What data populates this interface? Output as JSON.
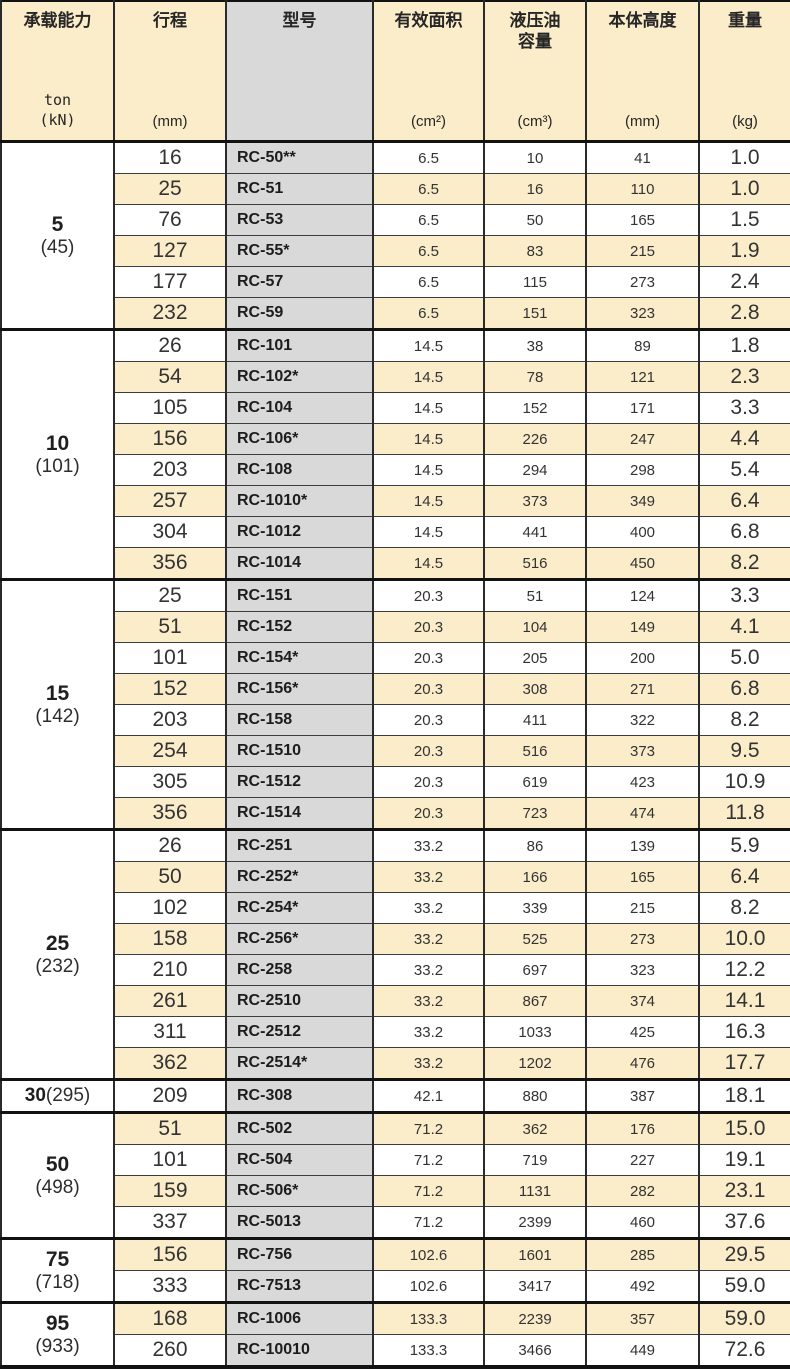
{
  "table": {
    "columns": [
      {
        "label": "承载能力",
        "sub1": "ton",
        "sub2": "(kN)"
      },
      {
        "label": "行程",
        "unit": "(mm)"
      },
      {
        "label": "型号",
        "unit": ""
      },
      {
        "label": "有效面积",
        "unit": "(cm²)"
      },
      {
        "label": "液压油容量",
        "unit": "(cm³)"
      },
      {
        "label": "本体高度",
        "unit": "(mm)"
      },
      {
        "label": "重量",
        "unit": "(kg)"
      }
    ],
    "colors": {
      "row_cream": "#fbedca",
      "model_column_gray": "#d9d9d9",
      "row_white": "#ffffff",
      "border_black": "#121212"
    },
    "sections": [
      {
        "capacity_ton": "5",
        "capacity_kn": "(45)",
        "inline_label": false,
        "rows": [
          [
            "16",
            "RC-50**",
            "6.5",
            "10",
            "41",
            "1.0"
          ],
          [
            "25",
            "RC-51",
            "6.5",
            "16",
            "110",
            "1.0"
          ],
          [
            "76",
            "RC-53",
            "6.5",
            "50",
            "165",
            "1.5"
          ],
          [
            "127",
            "RC-55*",
            "6.5",
            "83",
            "215",
            "1.9"
          ],
          [
            "177",
            "RC-57",
            "6.5",
            "115",
            "273",
            "2.4"
          ],
          [
            "232",
            "RC-59",
            "6.5",
            "151",
            "323",
            "2.8"
          ]
        ]
      },
      {
        "capacity_ton": "10",
        "capacity_kn": "(101)",
        "inline_label": false,
        "rows": [
          [
            "26",
            "RC-101",
            "14.5",
            "38",
            "89",
            "1.8"
          ],
          [
            "54",
            "RC-102*",
            "14.5",
            "78",
            "121",
            "2.3"
          ],
          [
            "105",
            "RC-104",
            "14.5",
            "152",
            "171",
            "3.3"
          ],
          [
            "156",
            "RC-106*",
            "14.5",
            "226",
            "247",
            "4.4"
          ],
          [
            "203",
            "RC-108",
            "14.5",
            "294",
            "298",
            "5.4"
          ],
          [
            "257",
            "RC-1010*",
            "14.5",
            "373",
            "349",
            "6.4"
          ],
          [
            "304",
            "RC-1012",
            "14.5",
            "441",
            "400",
            "6.8"
          ],
          [
            "356",
            "RC-1014",
            "14.5",
            "516",
            "450",
            "8.2"
          ]
        ]
      },
      {
        "capacity_ton": "15",
        "capacity_kn": "(142)",
        "inline_label": false,
        "rows": [
          [
            "25",
            "RC-151",
            "20.3",
            "51",
            "124",
            "3.3"
          ],
          [
            "51",
            "RC-152",
            "20.3",
            "104",
            "149",
            "4.1"
          ],
          [
            "101",
            "RC-154*",
            "20.3",
            "205",
            "200",
            "5.0"
          ],
          [
            "152",
            "RC-156*",
            "20.3",
            "308",
            "271",
            "6.8"
          ],
          [
            "203",
            "RC-158",
            "20.3",
            "411",
            "322",
            "8.2"
          ],
          [
            "254",
            "RC-1510",
            "20.3",
            "516",
            "373",
            "9.5"
          ],
          [
            "305",
            "RC-1512",
            "20.3",
            "619",
            "423",
            "10.9"
          ],
          [
            "356",
            "RC-1514",
            "20.3",
            "723",
            "474",
            "11.8"
          ]
        ]
      },
      {
        "capacity_ton": "25",
        "capacity_kn": "(232)",
        "inline_label": false,
        "rows": [
          [
            "26",
            "RC-251",
            "33.2",
            "86",
            "139",
            "5.9"
          ],
          [
            "50",
            "RC-252*",
            "33.2",
            "166",
            "165",
            "6.4"
          ],
          [
            "102",
            "RC-254*",
            "33.2",
            "339",
            "215",
            "8.2"
          ],
          [
            "158",
            "RC-256*",
            "33.2",
            "525",
            "273",
            "10.0"
          ],
          [
            "210",
            "RC-258",
            "33.2",
            "697",
            "323",
            "12.2"
          ],
          [
            "261",
            "RC-2510",
            "33.2",
            "867",
            "374",
            "14.1"
          ],
          [
            "311",
            "RC-2512",
            "33.2",
            "1033",
            "425",
            "16.3"
          ],
          [
            "362",
            "RC-2514*",
            "33.2",
            "1202",
            "476",
            "17.7"
          ]
        ]
      },
      {
        "capacity_ton": "30",
        "capacity_kn": "(295)",
        "inline_label": true,
        "rows": [
          [
            "209",
            "RC-308",
            "42.1",
            "880",
            "387",
            "18.1"
          ]
        ]
      },
      {
        "capacity_ton": "50",
        "capacity_kn": "(498)",
        "inline_label": false,
        "rows": [
          [
            "51",
            "RC-502",
            "71.2",
            "362",
            "176",
            "15.0"
          ],
          [
            "101",
            "RC-504",
            "71.2",
            "719",
            "227",
            "19.1"
          ],
          [
            "159",
            "RC-506*",
            "71.2",
            "1131",
            "282",
            "23.1"
          ],
          [
            "337",
            "RC-5013",
            "71.2",
            "2399",
            "460",
            "37.6"
          ]
        ]
      },
      {
        "capacity_ton": "75",
        "capacity_kn": "(718)",
        "inline_label": false,
        "rows": [
          [
            "156",
            "RC-756",
            "102.6",
            "1601",
            "285",
            "29.5"
          ],
          [
            "333",
            "RC-7513",
            "102.6",
            "3417",
            "492",
            "59.0"
          ]
        ]
      },
      {
        "capacity_ton": "95",
        "capacity_kn": "(933)",
        "inline_label": false,
        "rows": [
          [
            "168",
            "RC-1006",
            "133.3",
            "2239",
            "357",
            "59.0"
          ],
          [
            "260",
            "RC-10010",
            "133.3",
            "3466",
            "449",
            "72.6"
          ]
        ]
      }
    ]
  }
}
